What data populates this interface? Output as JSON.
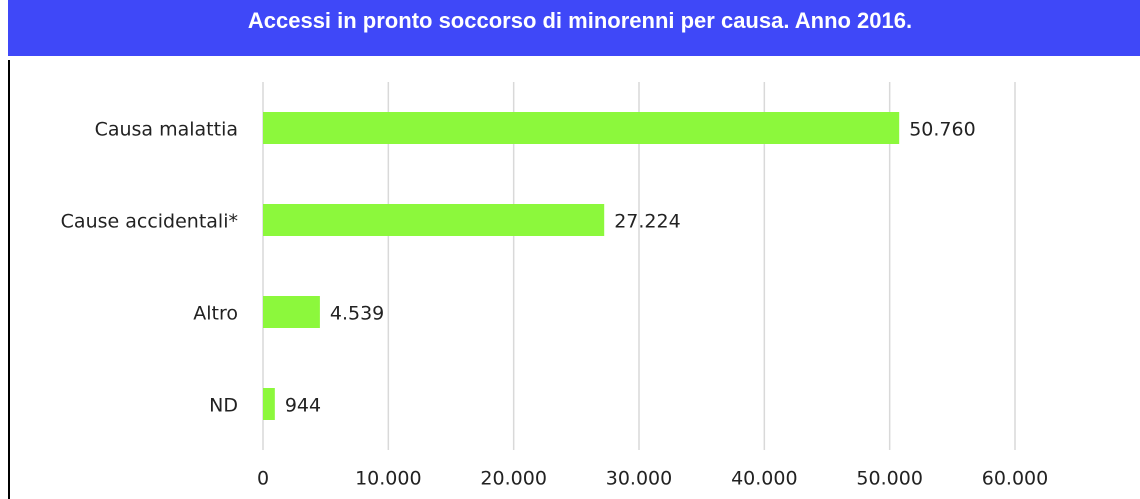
{
  "chart_data": {
    "type": "bar",
    "orientation": "horizontal",
    "title": "Accessi in pronto soccorso di minorenni per causa. Anno 2016.",
    "categories": [
      "Causa malattia",
      "Cause accidentali*",
      "Altro",
      "ND"
    ],
    "values": [
      50760,
      27224,
      4539,
      944
    ],
    "value_labels": [
      "50.760",
      "27.224",
      "4.539",
      "944"
    ],
    "color": "#8cf83c",
    "xlim": [
      0,
      60000
    ],
    "xticks": [
      0,
      {
        "value": 10000,
        "label": "10.000"
      },
      {
        "value": 20000,
        "label": "20.000"
      },
      {
        "value": 30000,
        "label": "30.000"
      },
      {
        "value": 40000,
        "label": "40.000"
      },
      {
        "value": 50000,
        "label": "50.000"
      },
      {
        "value": 60000,
        "label": "60.000"
      }
    ],
    "grid": true
  }
}
